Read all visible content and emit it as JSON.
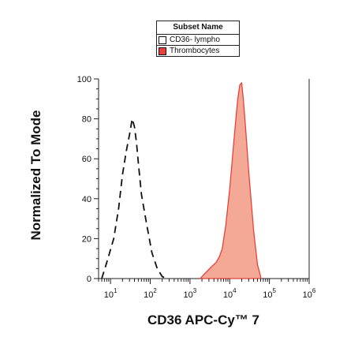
{
  "chart_data": {
    "type": "histogram",
    "xlabel": "CD36 APC-Cy™ 7",
    "ylabel": "Normalized To Mode",
    "x_scale": "log",
    "xlim": [
      5,
      1000000
    ],
    "ylim": [
      0,
      100
    ],
    "x_ticks": [
      {
        "value": 10,
        "base": "10",
        "exp": "1"
      },
      {
        "value": 100,
        "base": "10",
        "exp": "2"
      },
      {
        "value": 1000,
        "base": "10",
        "exp": "3"
      },
      {
        "value": 10000,
        "base": "10",
        "exp": "4"
      },
      {
        "value": 100000,
        "base": "10",
        "exp": "5"
      },
      {
        "value": 1000000,
        "base": "10",
        "exp": "6"
      }
    ],
    "y_ticks": [
      0,
      20,
      40,
      60,
      80,
      100
    ],
    "legend": {
      "title": "Subset Name",
      "placement": "top-center",
      "entries": [
        {
          "label": "CD36- lympho",
          "color": "#ffffff"
        },
        {
          "label": "Thrombocytes",
          "color": "#e8413a"
        }
      ]
    },
    "series": [
      {
        "name": "CD36- lympho",
        "style": "dashed",
        "color": "#111111",
        "x": [
          6,
          8,
          12,
          16,
          20,
          25,
          30,
          35,
          40,
          45,
          50,
          60,
          80,
          110,
          150,
          200,
          260
        ],
        "y": [
          0,
          8,
          20,
          35,
          52,
          64,
          72,
          80,
          76,
          68,
          58,
          42,
          28,
          13,
          5,
          1,
          0
        ]
      },
      {
        "name": "Thrombocytes",
        "style": "filled",
        "color": "#e8413a",
        "fill": "#f4a896",
        "x": [
          1800,
          2500,
          3500,
          4500,
          5500,
          6500,
          8000,
          10000,
          12000,
          14000,
          16000,
          18000,
          20000,
          22000,
          25000,
          30000,
          40000,
          50000,
          60000
        ],
        "y": [
          0,
          3,
          6,
          8,
          11,
          15,
          27,
          45,
          63,
          78,
          90,
          97,
          98,
          90,
          76,
          54,
          24,
          7,
          1
        ]
      }
    ]
  }
}
